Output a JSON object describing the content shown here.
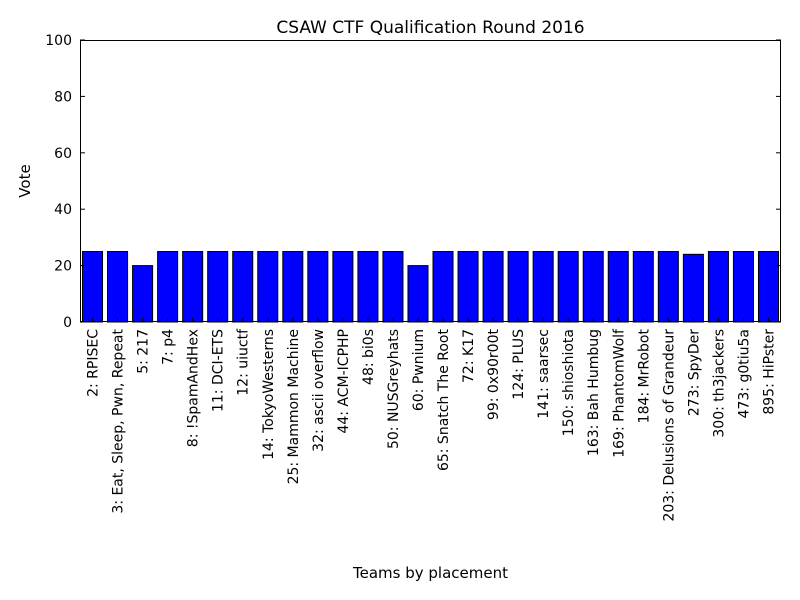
{
  "chart_data": {
    "type": "bar",
    "title": "CSAW CTF Qualification Round 2016",
    "xlabel": "Teams by placement",
    "ylabel": "Vote",
    "ylim": [
      0,
      100
    ],
    "yticks": [
      0,
      20,
      40,
      60,
      80,
      100
    ],
    "grid": false,
    "bar_color": "#0000ff",
    "categories": [
      "2: RPISEC",
      "3: Eat, Sleep, Pwn, Repeat",
      "5: 217",
      "7: p4",
      "8: !SpamAndHex",
      "11: DCI-ETS",
      "12: uiuctf",
      "14: TokyoWesterns",
      "25: Mammon Machine",
      "32: ascii overflow",
      "44: ACM-ICPHP",
      "48: bi0s",
      "50: NUSGreyhats",
      "60: Pwnium",
      "65: Snatch The Root",
      "72: K17",
      "99: 0x90r00t",
      "124: PLUS",
      "141: saarsec",
      "150: shioshiota",
      "163: Bah Humbug",
      "169: PhantomWolf",
      "184: MrRobot",
      "203: Delusions of Grandeur",
      "273: SpyDer",
      "300: th3jackers",
      "473: g0tiu5a",
      "895: HiPster"
    ],
    "values": [
      25,
      25,
      20,
      25,
      25,
      25,
      25,
      25,
      25,
      25,
      25,
      25,
      25,
      20,
      25,
      25,
      25,
      25,
      25,
      25,
      25,
      25,
      25,
      25,
      24,
      25,
      25,
      25
    ]
  }
}
